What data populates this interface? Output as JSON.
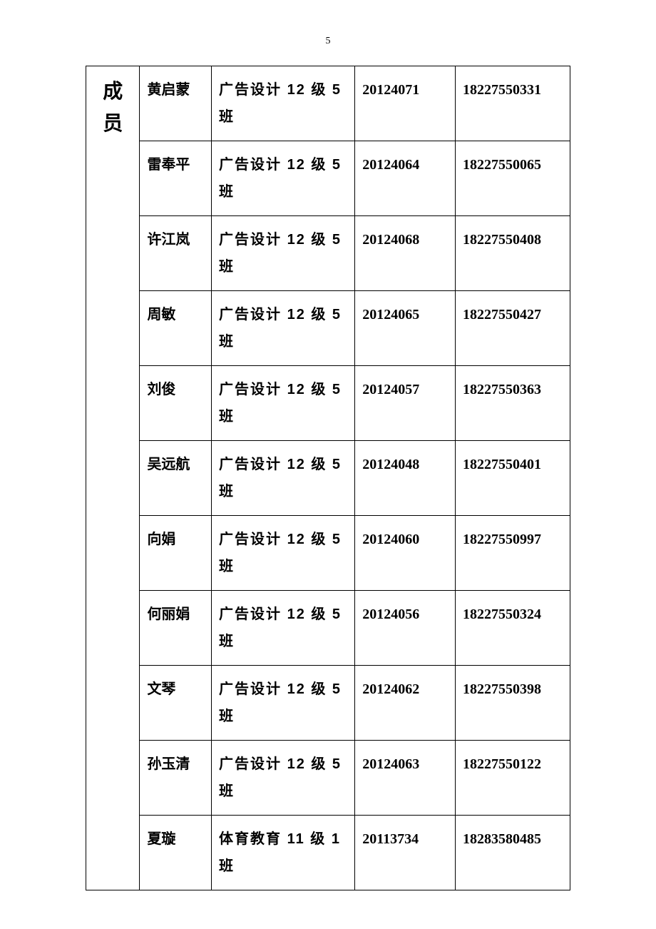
{
  "page_number": "5",
  "header_label": "成员",
  "columns": {
    "widths": [
      75,
      100,
      200,
      140,
      160
    ],
    "border_color": "#000000",
    "background_color": "#ffffff",
    "text_color": "#000000",
    "header_fontsize": 28,
    "body_fontsize": 20,
    "font_weight": "bold",
    "header_font": "SimSun",
    "name_class_font": "SimHei",
    "number_font": "Times New Roman"
  },
  "rows": [
    {
      "name": "黄启蒙",
      "class_prefix": "广告设计 12 级 5",
      "class_suffix": "班",
      "id": "20124071",
      "phone": "18227550331"
    },
    {
      "name": "雷奉平",
      "class_prefix": "广告设计 12 级 5",
      "class_suffix": "班",
      "id": "20124064",
      "phone": "18227550065"
    },
    {
      "name": "许江岚",
      "class_prefix": "广告设计 12 级 5",
      "class_suffix": "班",
      "id": "20124068",
      "phone": "18227550408"
    },
    {
      "name": "周敏",
      "class_prefix": "广告设计 12 级 5",
      "class_suffix": "班",
      "id": "20124065",
      "phone": "18227550427"
    },
    {
      "name": "刘俊",
      "class_prefix": "广告设计 12 级 5",
      "class_suffix": "班",
      "id": "20124057",
      "phone": "18227550363"
    },
    {
      "name": "吴远航",
      "class_prefix": "广告设计 12 级 5",
      "class_suffix": "班",
      "id": "20124048",
      "phone": "18227550401"
    },
    {
      "name": "向娟",
      "class_prefix": "广告设计 12 级 5",
      "class_suffix": "班",
      "id": "20124060",
      "phone": "18227550997"
    },
    {
      "name": "何丽娟",
      "class_prefix": "广告设计 12 级 5",
      "class_suffix": "班",
      "id": "20124056",
      "phone": "18227550324"
    },
    {
      "name": "文琴",
      "class_prefix": "广告设计 12 级 5",
      "class_suffix": "班",
      "id": "20124062",
      "phone": "18227550398"
    },
    {
      "name": "孙玉清",
      "class_prefix": "广告设计 12 级 5",
      "class_suffix": "班",
      "id": "20124063",
      "phone": "18227550122"
    },
    {
      "name": "夏璇",
      "class_prefix": "体育教育 11 级 1",
      "class_suffix": "班",
      "id": "20113734",
      "phone": "18283580485"
    }
  ]
}
